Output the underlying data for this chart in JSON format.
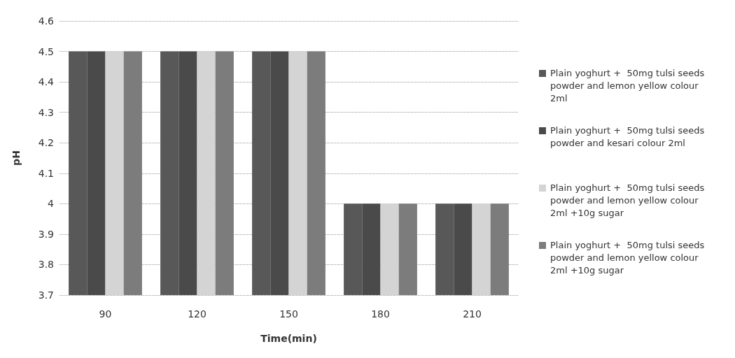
{
  "chart_data": {
    "type": "bar",
    "xlabel": "Time(min)",
    "ylabel": "pH",
    "categories": [
      "90",
      "120",
      "150",
      "180",
      "210"
    ],
    "series": [
      {
        "name": "Plain yoghurt +  50mg tulsi seeds powder and lemon yellow colour 2ml",
        "color": "#585858",
        "values": [
          4.5,
          4.5,
          4.5,
          4.0,
          4.0
        ]
      },
      {
        "name": "Plain yoghurt +  50mg tulsi seeds powder and kesari colour 2ml",
        "color": "#4a4a4a",
        "values": [
          4.5,
          4.5,
          4.5,
          4.0,
          4.0
        ]
      },
      {
        "name": "Plain yoghurt +  50mg tulsi seeds powder and lemon yellow colour 2ml +10g sugar",
        "color": "#d4d4d4",
        "values": [
          4.5,
          4.5,
          4.5,
          4.0,
          4.0
        ]
      },
      {
        "name": "Plain yoghurt +  50mg tulsi seeds powder and lemon yellow colour 2ml +10g sugar",
        "color": "#7c7c7c",
        "values": [
          4.5,
          4.5,
          4.5,
          4.0,
          4.0
        ]
      }
    ],
    "ylim": [
      3.7,
      4.6
    ],
    "yticks": [
      3.7,
      3.8,
      3.9,
      4,
      4.1,
      4.2,
      4.3,
      4.4,
      4.5,
      4.6
    ],
    "grid": "y",
    "legend": "right"
  }
}
